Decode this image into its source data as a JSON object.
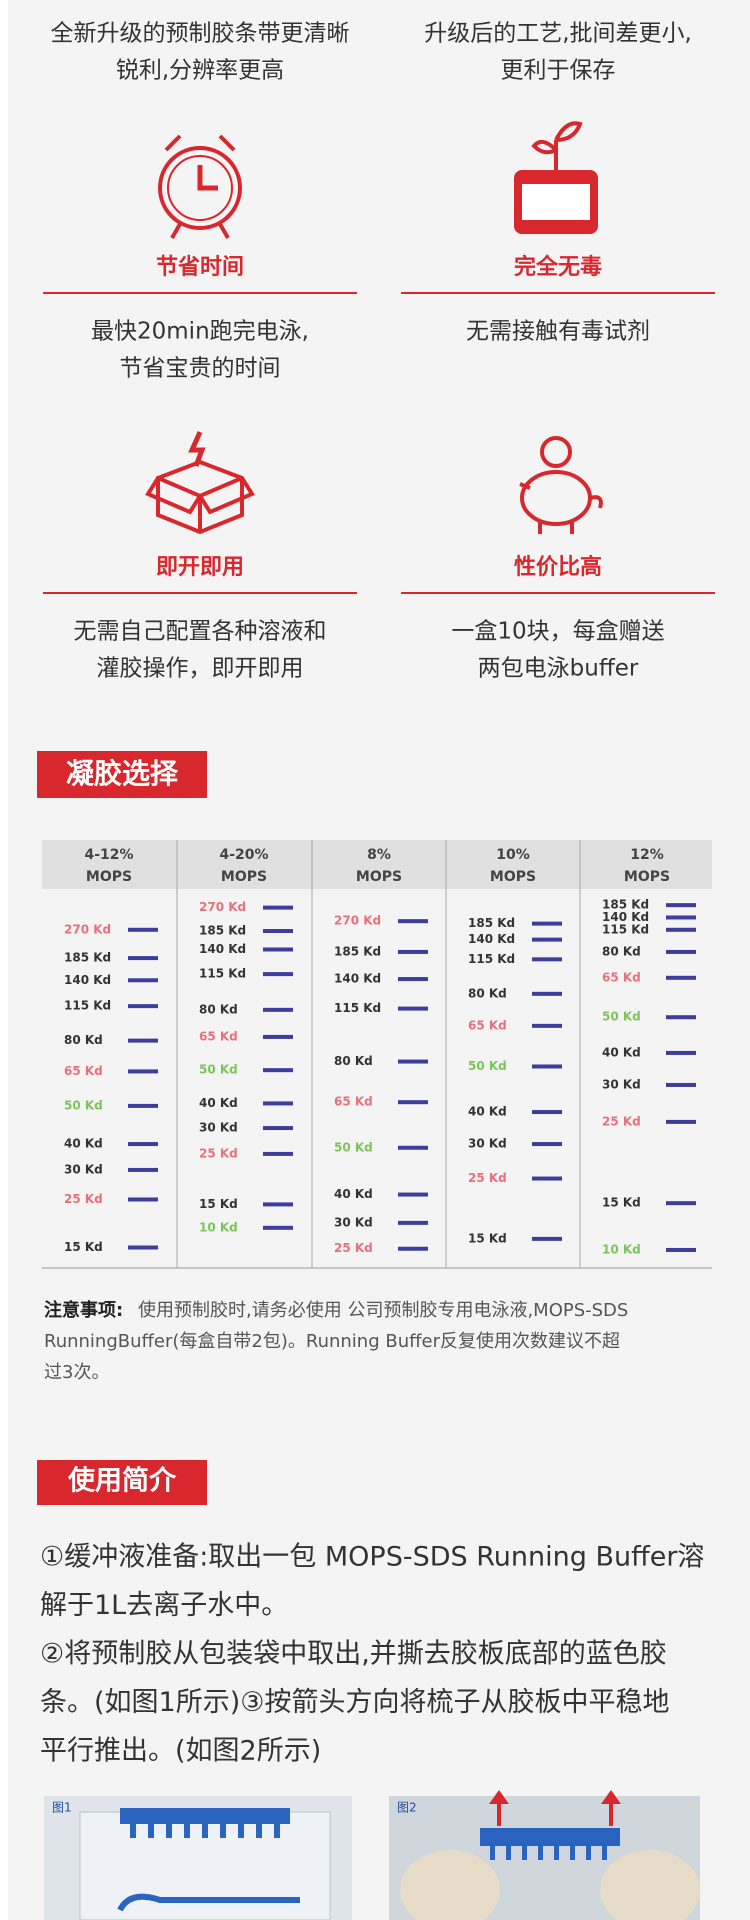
{
  "top_notes": [
    [
      "全新升级的预制胶条带更清晰",
      "锐利,分辨率更高"
    ],
    [
      "升级后的工艺,批间差更小,",
      "更利于保存"
    ]
  ],
  "features": [
    {
      "title": "节省时间",
      "description": [
        "最快20min跑完电泳,",
        "节省宝贵的时间"
      ]
    },
    {
      "title": "完全无毒",
      "description": [
        "无需接触有毒试剂"
      ]
    },
    {
      "title": "即开即用",
      "description": [
        "无需自己配置各种溶液和",
        "灌胶操作，即开即用"
      ]
    },
    {
      "title": "性价比高",
      "description": [
        "一盒10块，每盒赠送",
        "两包电泳buffer"
      ]
    }
  ],
  "gel_section": {
    "title": "凝胶选择",
    "columns": [
      {
        "header": [
          "4-12%",
          "MOPS"
        ],
        "markers": [
          {
            "label": "270 Kd",
            "color": "#e8707a"
          },
          {
            "label": "185 Kd",
            "color": "#333333"
          },
          {
            "label": "140 Kd",
            "color": "#333333"
          },
          {
            "label": "115 Kd",
            "color": "#333333"
          },
          {
            "label": "80 Kd",
            "color": "#333333"
          },
          {
            "label": "65 Kd",
            "color": "#e8707a"
          },
          {
            "label": "50 Kd",
            "color": "#7cc45a"
          },
          {
            "label": "40 Kd",
            "color": "#333333"
          },
          {
            "label": "30 Kd",
            "color": "#333333"
          },
          {
            "label": "25 Kd",
            "color": "#e8707a"
          },
          {
            "label": "15 Kd",
            "color": "#333333"
          }
        ]
      },
      {
        "header": [
          "4-20%",
          "MOPS"
        ],
        "markers": [
          {
            "label": "270 Kd",
            "color": "#e8707a"
          },
          {
            "label": "185 Kd",
            "color": "#333333"
          },
          {
            "label": "140 Kd",
            "color": "#333333"
          },
          {
            "label": "115 Kd",
            "color": "#333333"
          },
          {
            "label": "80 Kd",
            "color": "#333333"
          },
          {
            "label": "65 Kd",
            "color": "#e8707a"
          },
          {
            "label": "50 Kd",
            "color": "#7cc45a"
          },
          {
            "label": "40 Kd",
            "color": "#333333"
          },
          {
            "label": "30 Kd",
            "color": "#333333"
          },
          {
            "label": "25 Kd",
            "color": "#e8707a"
          },
          {
            "label": "15 Kd",
            "color": "#333333"
          },
          {
            "label": "10 Kd",
            "color": "#7cc45a"
          }
        ]
      },
      {
        "header": [
          "8%",
          "MOPS"
        ],
        "markers": [
          {
            "label": "270 Kd",
            "color": "#e8707a"
          },
          {
            "label": "185 Kd",
            "color": "#333333"
          },
          {
            "label": "140 Kd",
            "color": "#333333"
          },
          {
            "label": "115 Kd",
            "color": "#333333"
          },
          {
            "label": "80 Kd",
            "color": "#333333"
          },
          {
            "label": "65 Kd",
            "color": "#e8707a"
          },
          {
            "label": "50 Kd",
            "color": "#7cc45a"
          },
          {
            "label": "40 Kd",
            "color": "#333333"
          },
          {
            "label": "30 Kd",
            "color": "#333333"
          },
          {
            "label": "25 Kd",
            "color": "#e8707a"
          }
        ]
      },
      {
        "header": [
          "10%",
          "MOPS"
        ],
        "markers": [
          {
            "label": "185 Kd",
            "color": "#333333"
          },
          {
            "label": "140 Kd",
            "color": "#333333"
          },
          {
            "label": "115 Kd",
            "color": "#333333"
          },
          {
            "label": "80 Kd",
            "color": "#333333"
          },
          {
            "label": "65 Kd",
            "color": "#e8707a"
          },
          {
            "label": "50 Kd",
            "color": "#7cc45a"
          },
          {
            "label": "40 Kd",
            "color": "#333333"
          },
          {
            "label": "30 Kd",
            "color": "#333333"
          },
          {
            "label": "25 Kd",
            "color": "#e8707a"
          },
          {
            "label": "15 Kd",
            "color": "#333333"
          }
        ]
      },
      {
        "header": [
          "12%",
          "MOPS"
        ],
        "markers": [
          {
            "label": "185 Kd",
            "color": "#333333"
          },
          {
            "label": "140 Kd",
            "color": "#333333"
          },
          {
            "label": "115 Kd",
            "color": "#333333"
          },
          {
            "label": "80 Kd",
            "color": "#333333"
          },
          {
            "label": "65 Kd",
            "color": "#e8707a"
          },
          {
            "label": "50 Kd",
            "color": "#7cc45a"
          },
          {
            "label": "40 Kd",
            "color": "#333333"
          },
          {
            "label": "30 Kd",
            "color": "#333333"
          },
          {
            "label": "25 Kd",
            "color": "#e8707a"
          },
          {
            "label": "15 Kd",
            "color": "#333333"
          },
          {
            "label": "10 Kd",
            "color": "#7cc45a"
          }
        ]
      }
    ]
  },
  "note": {
    "label": "注意事项:",
    "lines": [
      "使用预制胶时,请务必使用 公司预制胶专用电泳液,MOPS-SDS",
      "RunningBuffer(每盒自带2包)。Running  Buffer反复使用次数建议不超",
      "过3次。"
    ]
  },
  "usage": {
    "title": "使用简介",
    "lines": [
      "①缓冲液准备:取出一包 MOPS-SDS Running Buffer溶",
      "解于1L去离子水中。",
      "②将预制胶从包装袋中取出,并撕去胶板底部的蓝色胶",
      "条。(如图1所示)③按箭头方向将梳子从胶板中平稳地",
      "平行推出。(如图2所示)"
    ]
  },
  "figures": [
    "图1",
    "图2"
  ]
}
